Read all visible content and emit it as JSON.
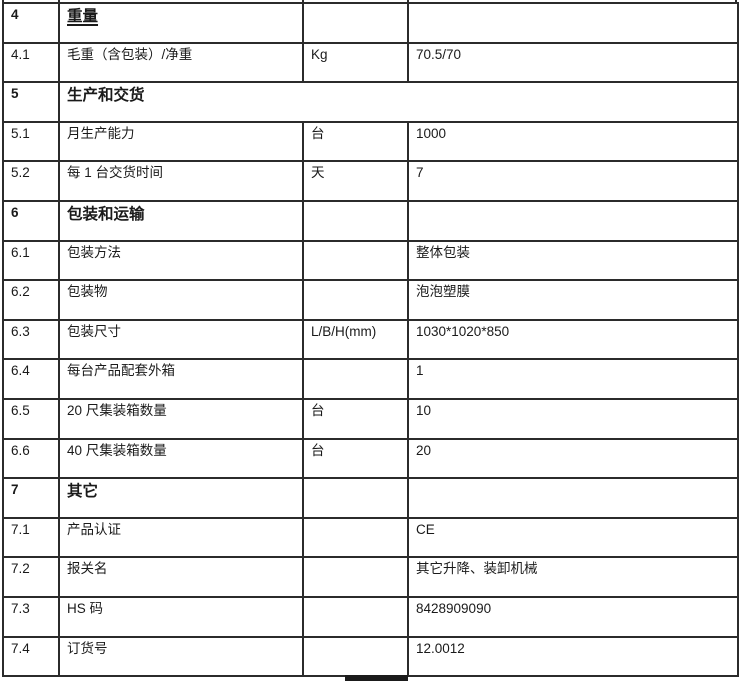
{
  "colors": {
    "background": "#ffffff",
    "grid_border": "#2b2b2b",
    "text": "#1a1a1a"
  },
  "table": {
    "rows": [
      {
        "type": "section",
        "span": false,
        "underline": true,
        "num": "4",
        "label": "重量",
        "unit": "",
        "value": ""
      },
      {
        "type": "item",
        "num": "4.1",
        "label": "毛重（含包装）/净重",
        "unit": "Kg",
        "value": "70.5/70"
      },
      {
        "type": "section",
        "span": true,
        "underline": false,
        "num": "5",
        "label": "生产和交货"
      },
      {
        "type": "item",
        "num": "5.1",
        "label": "月生产能力",
        "unit": "台",
        "value": "1000"
      },
      {
        "type": "item",
        "num": "5.2",
        "label": "每 1 台交货时间",
        "unit": "天",
        "value": "7"
      },
      {
        "type": "section",
        "span": false,
        "underline": false,
        "num": "6",
        "label": "包装和运输",
        "unit": "",
        "value": ""
      },
      {
        "type": "item",
        "num": "6.1",
        "label": "包装方法",
        "unit": "",
        "value": "整体包装"
      },
      {
        "type": "item",
        "num": "6.2",
        "label": "包装物",
        "unit": "",
        "value": "泡泡塑膜"
      },
      {
        "type": "item",
        "num": "6.3",
        "label": "包装尺寸",
        "unit": "L/B/H(mm)",
        "value": "1030*1020*850"
      },
      {
        "type": "item",
        "num": "6.4",
        "label": "每台产品配套外箱",
        "unit": "",
        "value": "1"
      },
      {
        "type": "item",
        "num": "6.5",
        "label": "20 尺集装箱数量",
        "unit": "台",
        "value": "10"
      },
      {
        "type": "item",
        "num": "6.6",
        "label": "40 尺集装箱数量",
        "unit": "台",
        "value": "20"
      },
      {
        "type": "section",
        "span": false,
        "underline": false,
        "num": "7",
        "label": "其它",
        "unit": "",
        "value": ""
      },
      {
        "type": "item",
        "num": "7.1",
        "label": "产品认证",
        "unit": "",
        "value": "CE"
      },
      {
        "type": "item",
        "num": "7.2",
        "label": "报关名",
        "unit": "",
        "value": "其它升降、装卸机械"
      },
      {
        "type": "item",
        "num": "7.3",
        "label": "HS 码",
        "unit": "",
        "value": "8428909090"
      },
      {
        "type": "item",
        "num": "7.4",
        "label": "订货号",
        "unit": "",
        "value": "12.0012"
      }
    ]
  }
}
